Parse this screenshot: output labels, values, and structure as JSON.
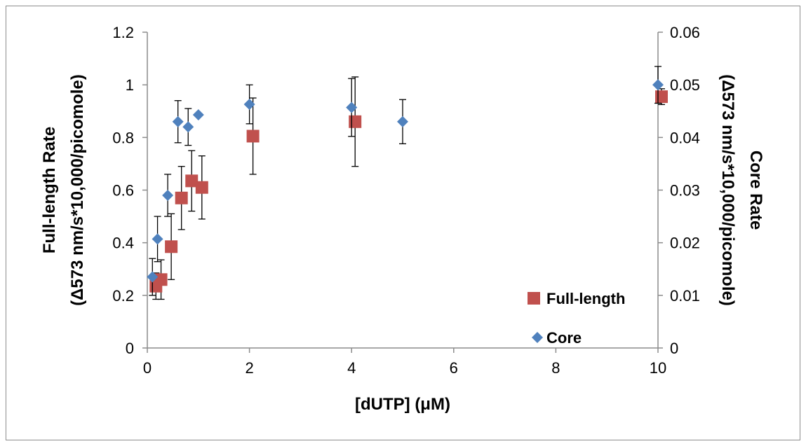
{
  "chart_data": {
    "type": "scatter",
    "xlabel": "[dUTP] (μM)",
    "ylabel": [
      "Full-length Rate",
      "(Δ573 nm/s*10,000/picomole)"
    ],
    "y2label": [
      "Core Rate",
      "(Δ573 nm/s*10,000/picomole)"
    ],
    "xlim": [
      0,
      10
    ],
    "ylim": [
      0,
      1.2
    ],
    "y2lim": [
      0,
      0.06
    ],
    "xticks": [
      "0",
      "2",
      "4",
      "6",
      "8",
      "10"
    ],
    "yticks": [
      "0",
      "0.2",
      "0.4",
      "0.6",
      "0.8",
      "1",
      "1.2"
    ],
    "y2ticks": [
      "0",
      "0.01",
      "0.02",
      "0.03",
      "0.04",
      "0.05",
      "0.06"
    ],
    "grid": false,
    "legend_position": "bottom-right",
    "series": [
      {
        "name": "Full-length",
        "axis": "left",
        "marker": "square",
        "color": "#c0504d",
        "x": [
          0.1,
          0.2,
          0.4,
          0.6,
          0.8,
          1.0,
          2.0,
          4.0,
          10.0
        ],
        "y": [
          0.235,
          0.26,
          0.385,
          0.57,
          0.635,
          0.61,
          0.805,
          0.86,
          0.955
        ],
        "err": [
          0.05,
          0.075,
          0.125,
          0.12,
          0.115,
          0.12,
          0.145,
          0.17,
          0.03
        ]
      },
      {
        "name": "Core",
        "axis": "right",
        "marker": "diamond",
        "color": "#4f81bd",
        "x": [
          0.1,
          0.2,
          0.4,
          0.6,
          0.8,
          1.0,
          2.0,
          4.0,
          5.0,
          10.0
        ],
        "y": [
          0.0135,
          0.0207,
          0.029,
          0.043,
          0.042,
          0.0443,
          0.0463,
          0.0457,
          0.043,
          0.05
        ],
        "err": [
          0.0035,
          0.0043,
          0.004,
          0.004,
          0.0035,
          0.0,
          0.0037,
          0.0055,
          0.0042,
          0.0035
        ]
      }
    ]
  }
}
